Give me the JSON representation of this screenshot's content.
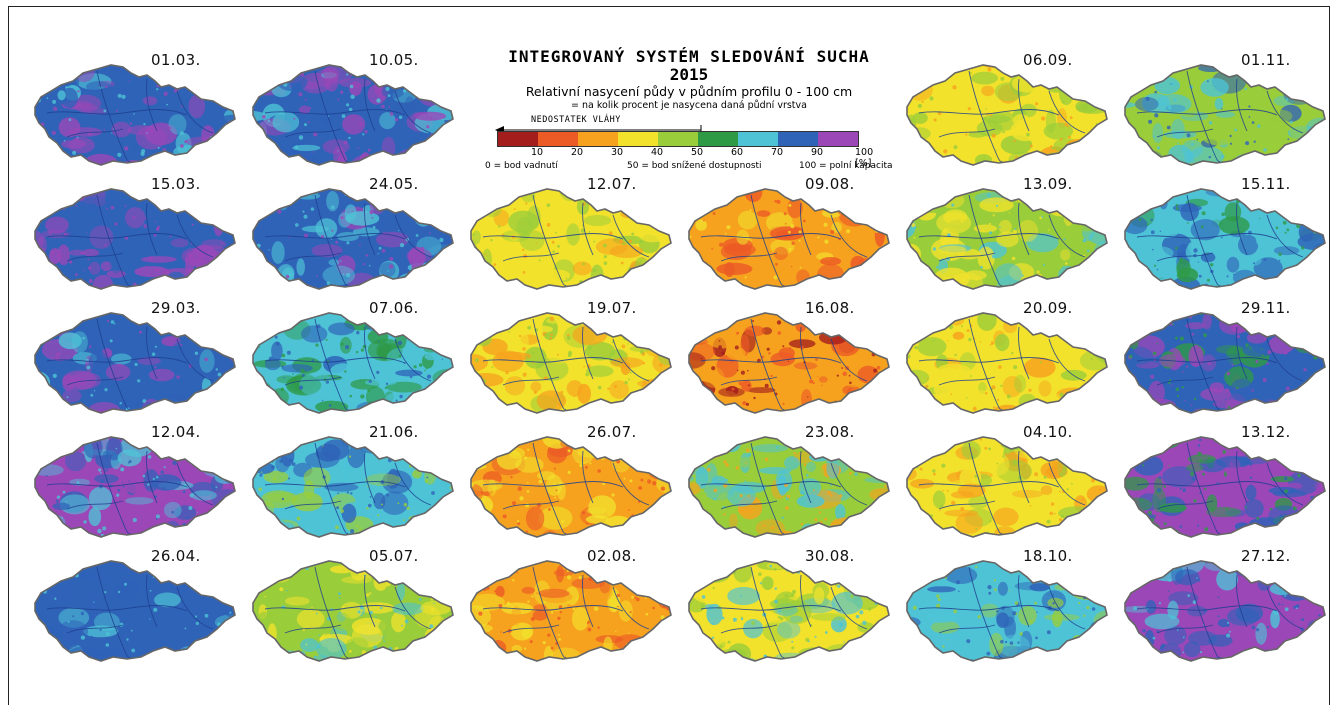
{
  "header": {
    "title": "INTEGROVANÝ SYSTÉM SLEDOVÁNÍ SUCHA",
    "year": "2015",
    "subtitle": "Relativní nasycení půdy v půdním profilu 0 - 100 cm",
    "note": "= na kolik procent je nasycena daná půdní vrstva"
  },
  "legend": {
    "deficit_label": "NEDOSTATEK VLÁHY",
    "colors": [
      "#a31d1d",
      "#ec5a26",
      "#f6a21e",
      "#f2e22c",
      "#9acd3a",
      "#2e9a46",
      "#4ec3d6",
      "#2f63b8",
      "#9b47b8"
    ],
    "tick_labels": [
      "10",
      "20",
      "30",
      "40",
      "50",
      "60",
      "70",
      "90",
      "100 [%]"
    ],
    "definitions": {
      "zero": "0 = bod vadnutí",
      "fifty": "50 = bod snížené dostupnosti",
      "hundred": "100 = polní kapacita"
    }
  },
  "maps": [
    {
      "date": "01.03.",
      "col": 0,
      "row": 0,
      "dominant": [
        90,
        100
      ],
      "accent": 70
    },
    {
      "date": "15.03.",
      "col": 0,
      "row": 1,
      "dominant": [
        90,
        100
      ],
      "accent": 100
    },
    {
      "date": "29.03.",
      "col": 0,
      "row": 2,
      "dominant": [
        90,
        100
      ],
      "accent": 70
    },
    {
      "date": "12.04.",
      "col": 0,
      "row": 3,
      "dominant": [
        100,
        90
      ],
      "accent": 70
    },
    {
      "date": "26.04.",
      "col": 0,
      "row": 4,
      "dominant": [
        90,
        90
      ],
      "accent": 70
    },
    {
      "date": "10.05.",
      "col": 1,
      "row": 0,
      "dominant": [
        90,
        100
      ],
      "accent": 70
    },
    {
      "date": "24.05.",
      "col": 1,
      "row": 1,
      "dominant": [
        90,
        70
      ],
      "accent": 100
    },
    {
      "date": "07.06.",
      "col": 1,
      "row": 2,
      "dominant": [
        70,
        60
      ],
      "accent": 90
    },
    {
      "date": "21.06.",
      "col": 1,
      "row": 3,
      "dominant": [
        70,
        90
      ],
      "accent": 50
    },
    {
      "date": "05.07.",
      "col": 1,
      "row": 4,
      "dominant": [
        50,
        40
      ],
      "accent": 70
    },
    {
      "date": "12.07.",
      "col": 2,
      "row": 1,
      "dominant": [
        40,
        50
      ],
      "accent": 30
    },
    {
      "date": "19.07.",
      "col": 2,
      "row": 2,
      "dominant": [
        40,
        30
      ],
      "accent": 50
    },
    {
      "date": "26.07.",
      "col": 2,
      "row": 3,
      "dominant": [
        30,
        40
      ],
      "accent": 20
    },
    {
      "date": "02.08.",
      "col": 2,
      "row": 4,
      "dominant": [
        30,
        40
      ],
      "accent": 20
    },
    {
      "date": "09.08.",
      "col": 3,
      "row": 1,
      "dominant": [
        30,
        20
      ],
      "accent": 40
    },
    {
      "date": "16.08.",
      "col": 3,
      "row": 2,
      "dominant": [
        30,
        20
      ],
      "accent": 10
    },
    {
      "date": "23.08.",
      "col": 3,
      "row": 3,
      "dominant": [
        50,
        70
      ],
      "accent": 30
    },
    {
      "date": "30.08.",
      "col": 3,
      "row": 4,
      "dominant": [
        40,
        50
      ],
      "accent": 70
    },
    {
      "date": "06.09.",
      "col": 4,
      "row": 0,
      "dominant": [
        40,
        50
      ],
      "accent": 30
    },
    {
      "date": "13.09.",
      "col": 4,
      "row": 1,
      "dominant": [
        50,
        40
      ],
      "accent": 70
    },
    {
      "date": "20.09.",
      "col": 4,
      "row": 2,
      "dominant": [
        40,
        50
      ],
      "accent": 30
    },
    {
      "date": "04.10.",
      "col": 4,
      "row": 3,
      "dominant": [
        40,
        30
      ],
      "accent": 50
    },
    {
      "date": "18.10.",
      "col": 4,
      "row": 4,
      "dominant": [
        70,
        90
      ],
      "accent": 50
    },
    {
      "date": "01.11.",
      "col": 5,
      "row": 0,
      "dominant": [
        50,
        70
      ],
      "accent": 90
    },
    {
      "date": "15.11.",
      "col": 5,
      "row": 1,
      "dominant": [
        70,
        90
      ],
      "accent": 60
    },
    {
      "date": "29.11.",
      "col": 5,
      "row": 2,
      "dominant": [
        90,
        100
      ],
      "accent": 60
    },
    {
      "date": "13.12.",
      "col": 5,
      "row": 3,
      "dominant": [
        100,
        90
      ],
      "accent": 60
    },
    {
      "date": "27.12.",
      "col": 5,
      "row": 4,
      "dominant": [
        100,
        90
      ],
      "accent": 70
    }
  ]
}
